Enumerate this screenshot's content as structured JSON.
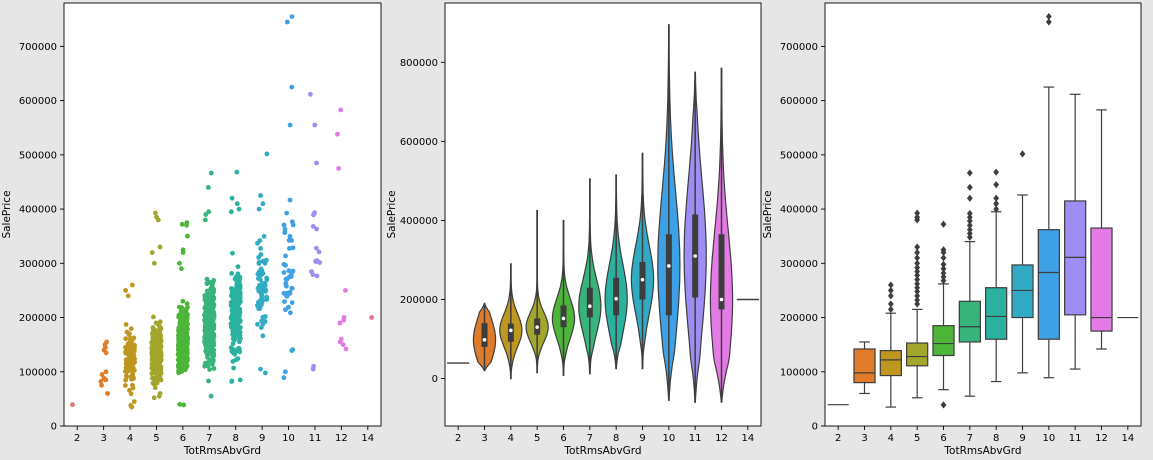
{
  "chart_data": [
    {
      "type": "scatter",
      "title": "",
      "xlabel": "TotRmsAbvGrd",
      "ylabel": "SalePrice",
      "categories": [
        "2",
        "3",
        "4",
        "5",
        "6",
        "7",
        "8",
        "9",
        "10",
        "11",
        "12",
        "14"
      ],
      "ylim": [
        0,
        780000
      ],
      "yticks": [
        0,
        100000,
        200000,
        300000,
        400000,
        500000,
        600000,
        700000
      ],
      "ytick_labels": [
        "0",
        "100000",
        "200000",
        "300000",
        "400000",
        "500000",
        "600000",
        "700000"
      ],
      "grid": false,
      "colors": [
        "#e8746a",
        "#e07b2a",
        "#bf9620",
        "#a2a62d",
        "#4db53a",
        "#37b47c",
        "#2bb1a0",
        "#31abc4",
        "#3ea1e6",
        "#9e8df2",
        "#e37ae5",
        "#e8719c"
      ],
      "groups": [
        {
          "category": "2",
          "min": 39300,
          "max": 39300,
          "center": 39300,
          "spread": 0,
          "points": [
            39300
          ]
        },
        {
          "category": "3",
          "min": 60000,
          "max": 155000,
          "center": 98000,
          "spread": 30000,
          "points": [
            60000,
            75000,
            82000,
            85000,
            88000,
            95000,
            100000,
            135000,
            140000,
            145000,
            150000,
            155000
          ]
        },
        {
          "category": "4",
          "min": 34900,
          "max": 260000,
          "center": 122000,
          "spread": 38000,
          "points": [
            34900,
            37900,
            45000,
            240000,
            250000,
            260000
          ]
        },
        {
          "category": "5",
          "min": 52000,
          "max": 392500,
          "center": 133000,
          "spread": 40000,
          "points": [
            52000,
            55000,
            60000,
            300000,
            320000,
            330000,
            380000,
            385000,
            392500
          ]
        },
        {
          "category": "6",
          "min": 39000,
          "max": 375000,
          "center": 158000,
          "spread": 45000,
          "points": [
            39000,
            40000,
            290000,
            300000,
            320000,
            325000,
            350000,
            370000,
            372000,
            375000
          ]
        },
        {
          "category": "7",
          "min": 55000,
          "max": 466500,
          "center": 190000,
          "spread": 60000,
          "points": [
            55000,
            380000,
            390000,
            395000,
            440000,
            466500
          ]
        },
        {
          "category": "8",
          "min": 82000,
          "max": 468000,
          "center": 210000,
          "spread": 70000,
          "points": [
            82000,
            85000,
            395000,
            400000,
            410000,
            420000,
            468000
          ]
        },
        {
          "category": "9",
          "min": 98000,
          "max": 501800,
          "center": 255000,
          "spread": 70000,
          "points": [
            98000,
            105000,
            400000,
            410000,
            425000,
            501800
          ]
        },
        {
          "category": "10",
          "min": 89000,
          "max": 755000,
          "center": 280000,
          "spread": 100000,
          "points": [
            89000,
            100000,
            555000,
            625000,
            745000,
            755000
          ]
        },
        {
          "category": "11",
          "min": 105000,
          "max": 611657,
          "center": 310000,
          "spread": 100000,
          "points": [
            105000,
            110000,
            485000,
            555000,
            611657
          ]
        },
        {
          "category": "12",
          "min": 142000,
          "max": 582933,
          "center": 200000,
          "spread": 80000,
          "points": [
            142000,
            150000,
            155000,
            160000,
            190000,
            195000,
            200000,
            250000,
            475000,
            538000,
            582933
          ]
        },
        {
          "category": "14",
          "min": 200000,
          "max": 200000,
          "center": 200000,
          "spread": 0,
          "points": [
            200000
          ]
        }
      ]
    },
    {
      "type": "violin",
      "title": "",
      "xlabel": "TotRmsAbvGrd",
      "ylabel": "SalePrice",
      "categories": [
        "2",
        "3",
        "4",
        "5",
        "6",
        "7",
        "8",
        "9",
        "10",
        "11",
        "12",
        "14"
      ],
      "ylim": [
        -120000,
        950000
      ],
      "yticks": [
        0,
        200000,
        400000,
        600000,
        800000
      ],
      "ytick_labels": [
        "0",
        "200000",
        "400000",
        "600000",
        "800000"
      ],
      "grid": false,
      "colors": [
        "#e8746a",
        "#e07b2a",
        "#bf9620",
        "#a2a62d",
        "#4db53a",
        "#37b47c",
        "#2bb1a0",
        "#31abc4",
        "#3ea1e6",
        "#9e8df2",
        "#e37ae5",
        "#e8719c"
      ],
      "groups": [
        {
          "category": "2",
          "low": 39300,
          "high": 39300,
          "median": 39300,
          "q1": 39300,
          "q3": 39300
        },
        {
          "category": "3",
          "low": 20000,
          "high": 190000,
          "median": 98000,
          "q1": 80000,
          "q3": 140000
        },
        {
          "category": "4",
          "low": 0,
          "high": 290000,
          "median": 122000,
          "q1": 93000,
          "q3": 139000
        },
        {
          "category": "5",
          "low": 15000,
          "high": 425000,
          "median": 130000,
          "q1": 111000,
          "q3": 152000
        },
        {
          "category": "6",
          "low": 8000,
          "high": 400000,
          "median": 152000,
          "q1": 130000,
          "q3": 185000
        },
        {
          "category": "7",
          "low": 12000,
          "high": 505000,
          "median": 183000,
          "q1": 155000,
          "q3": 230000
        },
        {
          "category": "8",
          "low": 25000,
          "high": 515000,
          "median": 202000,
          "q1": 160000,
          "q3": 255000
        },
        {
          "category": "9",
          "low": 25000,
          "high": 570000,
          "median": 250000,
          "q1": 200000,
          "q3": 295000
        },
        {
          "category": "10",
          "low": -55000,
          "high": 895000,
          "median": 285000,
          "q1": 160000,
          "q3": 365000
        },
        {
          "category": "11",
          "low": -60000,
          "high": 775000,
          "median": 310000,
          "q1": 205000,
          "q3": 415000
        },
        {
          "category": "12",
          "low": -60000,
          "high": 785000,
          "median": 200000,
          "q1": 175000,
          "q3": 365000
        },
        {
          "category": "14",
          "low": 200000,
          "high": 200000,
          "median": 200000,
          "q1": 200000,
          "q3": 200000
        }
      ]
    },
    {
      "type": "box",
      "title": "",
      "xlabel": "TotRmsAbvGrd",
      "ylabel": "SalePrice",
      "categories": [
        "2",
        "3",
        "4",
        "5",
        "6",
        "7",
        "8",
        "9",
        "10",
        "11",
        "12",
        "14"
      ],
      "ylim": [
        0,
        780000
      ],
      "yticks": [
        0,
        100000,
        200000,
        300000,
        400000,
        500000,
        600000,
        700000
      ],
      "ytick_labels": [
        "0",
        "100000",
        "200000",
        "300000",
        "400000",
        "500000",
        "600000",
        "700000"
      ],
      "grid": false,
      "colors": [
        "#e8746a",
        "#e07b2a",
        "#bf9620",
        "#a2a62d",
        "#4db53a",
        "#37b47c",
        "#2bb1a0",
        "#31abc4",
        "#3ea1e6",
        "#9e8df2",
        "#e37ae5",
        "#e8719c"
      ],
      "boxes": [
        {
          "category": "2",
          "whisker_low": 39300,
          "q1": 39300,
          "median": 39300,
          "q3": 39300,
          "whisker_high": 39300,
          "outliers": []
        },
        {
          "category": "3",
          "whisker_low": 60000,
          "q1": 80000,
          "median": 98000,
          "q3": 142000,
          "whisker_high": 155000,
          "outliers": []
        },
        {
          "category": "4",
          "whisker_low": 34900,
          "q1": 93000,
          "median": 122000,
          "q3": 139000,
          "whisker_high": 208000,
          "outliers": [
            215000,
            225000,
            240000,
            250000,
            260000
          ]
        },
        {
          "category": "5",
          "whisker_low": 52000,
          "q1": 111000,
          "median": 128000,
          "q3": 153000,
          "whisker_high": 215000,
          "outliers": [
            225000,
            232000,
            240000,
            248000,
            255000,
            262000,
            270000,
            278000,
            285000,
            292000,
            300000,
            310000,
            320000,
            330000,
            380000,
            385000,
            392500
          ]
        },
        {
          "category": "6",
          "whisker_low": 67000,
          "q1": 130000,
          "median": 152000,
          "q3": 185000,
          "whisker_high": 262000,
          "outliers": [
            39000,
            268000,
            275000,
            282000,
            290000,
            298000,
            310000,
            320000,
            325000,
            372000
          ]
        },
        {
          "category": "7",
          "whisker_low": 55000,
          "q1": 155000,
          "median": 183000,
          "q3": 230000,
          "whisker_high": 340000,
          "outliers": [
            348000,
            355000,
            362000,
            370000,
            378000,
            385000,
            392000,
            420000,
            440000,
            466500
          ]
        },
        {
          "category": "8",
          "whisker_low": 82000,
          "q1": 160000,
          "median": 202000,
          "q3": 255000,
          "whisker_high": 395000,
          "outliers": [
            400000,
            410000,
            420000,
            445000,
            468000
          ]
        },
        {
          "category": "9",
          "whisker_low": 98000,
          "q1": 200000,
          "median": 250000,
          "q3": 297000,
          "whisker_high": 426000,
          "outliers": [
            501800
          ]
        },
        {
          "category": "10",
          "whisker_low": 89000,
          "q1": 160000,
          "median": 283000,
          "q3": 362000,
          "whisker_high": 625000,
          "outliers": [
            745000,
            755000
          ]
        },
        {
          "category": "11",
          "whisker_low": 105000,
          "q1": 205000,
          "median": 311000,
          "q3": 415000,
          "whisker_high": 611657,
          "outliers": []
        },
        {
          "category": "12",
          "whisker_low": 142000,
          "q1": 175000,
          "median": 200000,
          "q3": 365000,
          "whisker_high": 582933,
          "outliers": []
        },
        {
          "category": "14",
          "whisker_low": 200000,
          "q1": 200000,
          "median": 200000,
          "q3": 200000,
          "whisker_high": 200000,
          "outliers": []
        }
      ]
    }
  ]
}
